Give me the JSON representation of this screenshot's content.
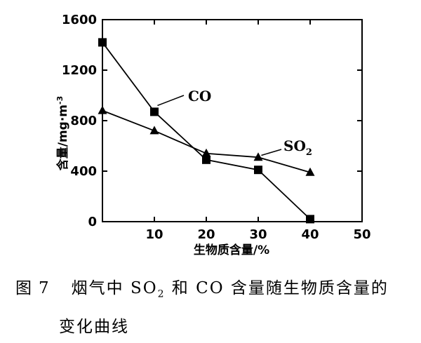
{
  "chart_data": {
    "type": "line",
    "xlabel": "生物质含量/%",
    "ylabel_main": "含量/mg·m",
    "ylabel_exp": "-3",
    "xlim": [
      0,
      50
    ],
    "ylim": [
      0,
      1600
    ],
    "x_ticks": [
      10,
      20,
      30,
      40,
      50
    ],
    "y_ticks": [
      0,
      400,
      800,
      1200,
      1600
    ],
    "grid": false,
    "series": [
      {
        "name": "CO",
        "marker": "square",
        "x": [
          0,
          10,
          20,
          30,
          40
        ],
        "y": [
          1420,
          870,
          490,
          410,
          20
        ]
      },
      {
        "name": "SO2",
        "name_main": "SO",
        "name_sub": "2",
        "marker": "triangle",
        "x": [
          0,
          10,
          20,
          30,
          40
        ],
        "y": [
          880,
          720,
          540,
          510,
          390
        ]
      }
    ]
  },
  "caption": {
    "fig_label": "图",
    "fig_num": "7",
    "line1_a": "烟气中 SO",
    "line1_sub": "2",
    "line1_b": " 和 CO 含量随生物质含量的",
    "line2": "变化曲线"
  }
}
